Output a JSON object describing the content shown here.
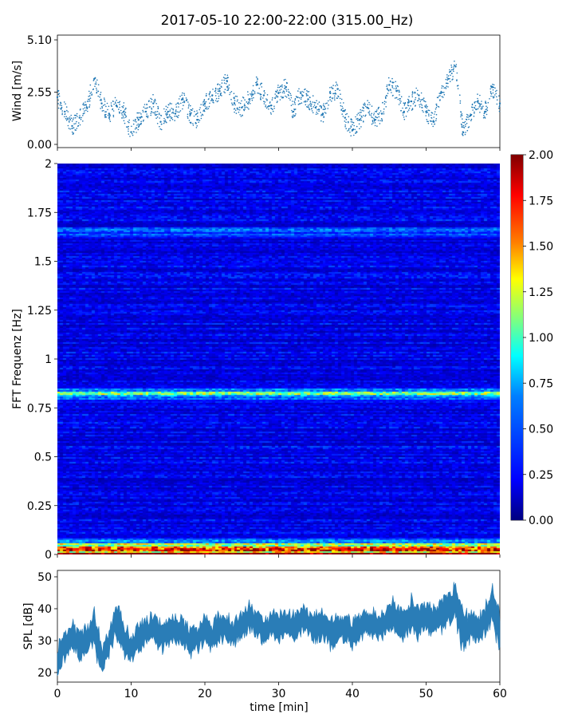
{
  "title": "2017-05-10 22:00-22:00 (315.00_Hz)",
  "chart_data": [
    {
      "type": "scatter",
      "panel": "wind",
      "ylabel": "Wind [m/s]",
      "ylim": [
        0.0,
        5.1
      ],
      "yticks": [
        "0.00",
        "2.55",
        "5.10"
      ],
      "xlim": [
        0,
        60
      ],
      "points_note_color": "#1f77b4",
      "series": [
        {
          "x": [
            0,
            1,
            2,
            3,
            4,
            5,
            6,
            7,
            8,
            9,
            10,
            11,
            12,
            13,
            14,
            15,
            16,
            17,
            18,
            19,
            20,
            21,
            22,
            23,
            24,
            25,
            26,
            27,
            28,
            29,
            30,
            31,
            32,
            33,
            34,
            35,
            36,
            37,
            38,
            39,
            40,
            41,
            42,
            43,
            44,
            45,
            46,
            47,
            48,
            49,
            50,
            51,
            52,
            53,
            54,
            55,
            56,
            57,
            58,
            59,
            60
          ],
          "y": [
            2.3,
            1.6,
            0.9,
            1.3,
            1.8,
            3.2,
            2.0,
            1.5,
            1.9,
            1.6,
            0.6,
            1.2,
            1.6,
            2.0,
            1.1,
            1.6,
            1.5,
            2.2,
            1.5,
            1.2,
            2.0,
            2.4,
            2.6,
            3.1,
            2.0,
            1.8,
            2.2,
            2.9,
            2.4,
            1.9,
            2.5,
            2.8,
            1.6,
            2.5,
            2.2,
            1.8,
            1.5,
            2.5,
            2.7,
            1.3,
            0.7,
            1.2,
            1.8,
            1.2,
            1.5,
            2.9,
            2.6,
            1.6,
            2.1,
            2.4,
            1.6,
            1.1,
            2.5,
            3.2,
            3.8,
            0.6,
            1.4,
            2.1,
            1.6,
            2.8,
            2.0
          ]
        }
      ]
    },
    {
      "type": "heatmap",
      "panel": "spectrogram",
      "ylabel": "FFT Frequenz [Hz]",
      "ylim": [
        0,
        2
      ],
      "yticks": [
        "0",
        "0.25",
        "0.5",
        "0.75",
        "1",
        "1.25",
        "1.5",
        "1.75",
        "2"
      ],
      "xlim": [
        0,
        60
      ],
      "colorbar": {
        "range": [
          0.0,
          2.0
        ],
        "ticks": [
          "0.00",
          "0.25",
          "0.50",
          "0.75",
          "1.00",
          "1.25",
          "1.50",
          "1.75",
          "2.00"
        ],
        "colormap": "jet"
      },
      "background_level": 0.25,
      "bands": [
        {
          "frequency": 0.82,
          "level": 0.75
        },
        {
          "frequency": 1.65,
          "level": 0.45
        },
        {
          "frequency": 0.03,
          "level": 1.1
        },
        {
          "frequency": 0.0,
          "level": 1.9
        }
      ]
    },
    {
      "type": "area",
      "panel": "spl",
      "ylabel": "SPL [dB]",
      "xlabel": "time [min]",
      "ylim": [
        17,
        52
      ],
      "yticks": [
        "20",
        "30",
        "40",
        "50"
      ],
      "xlim": [
        0,
        60
      ],
      "xticks": [
        "0",
        "10",
        "20",
        "30",
        "40",
        "50",
        "60"
      ],
      "color": "#1f77b4",
      "series": [
        {
          "x": [
            0,
            1,
            2,
            3,
            4,
            5,
            6,
            7,
            8,
            9,
            10,
            11,
            12,
            13,
            14,
            15,
            16,
            17,
            18,
            19,
            20,
            21,
            22,
            23,
            24,
            25,
            26,
            27,
            28,
            29,
            30,
            31,
            32,
            33,
            34,
            35,
            36,
            37,
            38,
            39,
            40,
            41,
            42,
            43,
            44,
            45,
            46,
            47,
            48,
            49,
            50,
            51,
            52,
            53,
            54,
            55,
            56,
            57,
            58,
            59,
            60
          ],
          "center": [
            24,
            28,
            31,
            29,
            30,
            34,
            23,
            30,
            36,
            30,
            28,
            31,
            33,
            34,
            31,
            33,
            34,
            32,
            30,
            31,
            33,
            31,
            34,
            33,
            32,
            35,
            37,
            36,
            33,
            35,
            34,
            36,
            34,
            37,
            36,
            34,
            35,
            32,
            33,
            34,
            32,
            34,
            36,
            35,
            34,
            38,
            37,
            35,
            38,
            36,
            38,
            36,
            38,
            40,
            42,
            33,
            35,
            34,
            36,
            41,
            32
          ],
          "spread": [
            4,
            4,
            4,
            4,
            4,
            5,
            4,
            4,
            5,
            4,
            4,
            4,
            4,
            4,
            4,
            4,
            4,
            4,
            4,
            4,
            4,
            4,
            4,
            4,
            4,
            4,
            4,
            4,
            4,
            4,
            4,
            4,
            4,
            4,
            4,
            4,
            4,
            4,
            4,
            4,
            4,
            4,
            4,
            4,
            4,
            5,
            5,
            4,
            5,
            4,
            4,
            4,
            5,
            5,
            6,
            5,
            4,
            4,
            5,
            6,
            4
          ]
        }
      ]
    }
  ]
}
